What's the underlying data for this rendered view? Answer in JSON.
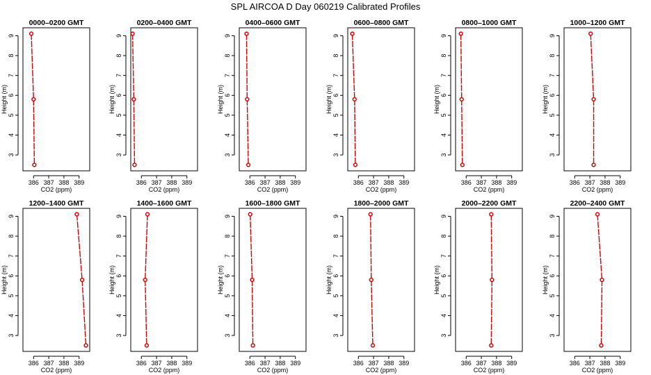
{
  "title": "SPL AIRCOA D  Day 060219  Calibrated Profiles",
  "colors": {
    "series": "#d40000"
  },
  "chart_data": [
    {
      "type": "line",
      "title": "0000–0200 GMT",
      "xlabel": "CO2 (ppm)",
      "ylabel": "Height (m)",
      "xlim": [
        385.3,
        389.7
      ],
      "ylim": [
        2.2,
        9.4
      ],
      "xticks": [
        386,
        387,
        388,
        389
      ],
      "yticks": [
        3,
        4,
        5,
        6,
        7,
        8,
        9
      ],
      "grid": false,
      "x": [
        385.85,
        386.0,
        386.05
      ],
      "y": [
        9.1,
        5.8,
        2.5
      ]
    },
    {
      "type": "line",
      "title": "0200–0400 GMT",
      "xlabel": "CO2 (ppm)",
      "ylabel": "Height (m)",
      "xlim": [
        385.3,
        389.7
      ],
      "ylim": [
        2.2,
        9.4
      ],
      "xticks": [
        386,
        387,
        388,
        389
      ],
      "yticks": [
        3,
        4,
        5,
        6,
        7,
        8,
        9
      ],
      "grid": false,
      "x": [
        385.42,
        385.5,
        385.55
      ],
      "y": [
        9.1,
        5.8,
        2.5
      ]
    },
    {
      "type": "line",
      "title": "0400–0600 GMT",
      "xlabel": "CO2 (ppm)",
      "ylabel": "Height (m)",
      "xlim": [
        385.3,
        389.7
      ],
      "ylim": [
        2.2,
        9.4
      ],
      "xticks": [
        386,
        387,
        388,
        389
      ],
      "yticks": [
        3,
        4,
        5,
        6,
        7,
        8,
        9
      ],
      "grid": false,
      "x": [
        385.78,
        385.82,
        385.9
      ],
      "y": [
        9.1,
        5.8,
        2.5
      ]
    },
    {
      "type": "line",
      "title": "0600–0800 GMT",
      "xlabel": "CO2 (ppm)",
      "ylabel": "Height (m)",
      "xlim": [
        385.3,
        389.7
      ],
      "ylim": [
        2.2,
        9.4
      ],
      "xticks": [
        386,
        387,
        388,
        389
      ],
      "yticks": [
        3,
        4,
        5,
        6,
        7,
        8,
        9
      ],
      "grid": false,
      "x": [
        385.6,
        385.75,
        385.8
      ],
      "y": [
        9.1,
        5.8,
        2.5
      ]
    },
    {
      "type": "line",
      "title": "0800–1000 GMT",
      "xlabel": "CO2 (ppm)",
      "ylabel": "Height (m)",
      "xlim": [
        385.3,
        389.7
      ],
      "ylim": [
        2.2,
        9.4
      ],
      "xticks": [
        386,
        387,
        388,
        389
      ],
      "yticks": [
        3,
        4,
        5,
        6,
        7,
        8,
        9
      ],
      "grid": false,
      "x": [
        385.65,
        385.7,
        385.75
      ],
      "y": [
        9.1,
        5.8,
        2.5
      ]
    },
    {
      "type": "line",
      "title": "1000–1200 GMT",
      "xlabel": "CO2 (ppm)",
      "ylabel": "Height (m)",
      "xlim": [
        385.3,
        389.7
      ],
      "ylim": [
        2.2,
        9.4
      ],
      "xticks": [
        386,
        387,
        388,
        389
      ],
      "yticks": [
        3,
        4,
        5,
        6,
        7,
        8,
        9
      ],
      "grid": false,
      "x": [
        387.05,
        387.25,
        387.25
      ],
      "y": [
        9.1,
        5.8,
        2.5
      ]
    },
    {
      "type": "line",
      "title": "1200–1400 GMT",
      "xlabel": "CO2 (ppm)",
      "ylabel": "Height (m)",
      "xlim": [
        385.3,
        389.7
      ],
      "ylim": [
        2.2,
        9.4
      ],
      "xticks": [
        386,
        387,
        388,
        389
      ],
      "yticks": [
        3,
        4,
        5,
        6,
        7,
        8,
        9
      ],
      "grid": false,
      "x": [
        388.85,
        389.2,
        389.45
      ],
      "y": [
        9.1,
        5.8,
        2.5
      ]
    },
    {
      "type": "line",
      "title": "1400–1600 GMT",
      "xlabel": "CO2 (ppm)",
      "ylabel": "Height (m)",
      "xlim": [
        385.3,
        389.7
      ],
      "ylim": [
        2.2,
        9.4
      ],
      "xticks": [
        386,
        387,
        388,
        389
      ],
      "yticks": [
        3,
        4,
        5,
        6,
        7,
        8,
        9
      ],
      "grid": false,
      "x": [
        386.4,
        386.25,
        386.35
      ],
      "y": [
        9.1,
        5.8,
        2.5
      ]
    },
    {
      "type": "line",
      "title": "1600–1800 GMT",
      "xlabel": "CO2 (ppm)",
      "ylabel": "Height (m)",
      "xlim": [
        385.3,
        389.7
      ],
      "ylim": [
        2.2,
        9.4
      ],
      "xticks": [
        386,
        387,
        388,
        389
      ],
      "yticks": [
        3,
        4,
        5,
        6,
        7,
        8,
        9
      ],
      "grid": false,
      "x": [
        386.02,
        386.15,
        386.2
      ],
      "y": [
        9.1,
        5.8,
        2.5
      ]
    },
    {
      "type": "line",
      "title": "1800–2000 GMT",
      "xlabel": "CO2 (ppm)",
      "ylabel": "Height (m)",
      "xlim": [
        385.3,
        389.7
      ],
      "ylim": [
        2.2,
        9.4
      ],
      "xticks": [
        386,
        387,
        388,
        389
      ],
      "yticks": [
        3,
        4,
        5,
        6,
        7,
        8,
        9
      ],
      "grid": false,
      "x": [
        386.8,
        386.85,
        386.95
      ],
      "y": [
        9.1,
        5.8,
        2.5
      ]
    },
    {
      "type": "line",
      "title": "2000–2200 GMT",
      "xlabel": "CO2 (ppm)",
      "ylabel": "Height (m)",
      "xlim": [
        385.3,
        389.7
      ],
      "ylim": [
        2.2,
        9.4
      ],
      "xticks": [
        386,
        387,
        388,
        389
      ],
      "yticks": [
        3,
        4,
        5,
        6,
        7,
        8,
        9
      ],
      "grid": false,
      "x": [
        387.65,
        387.7,
        387.65
      ],
      "y": [
        9.1,
        5.8,
        2.5
      ]
    },
    {
      "type": "line",
      "title": "2200–2400 GMT",
      "xlabel": "CO2 (ppm)",
      "ylabel": "Height (m)",
      "xlim": [
        385.3,
        389.7
      ],
      "ylim": [
        2.2,
        9.4
      ],
      "xticks": [
        386,
        387,
        388,
        389
      ],
      "yticks": [
        3,
        4,
        5,
        6,
        7,
        8,
        9
      ],
      "grid": false,
      "x": [
        387.5,
        387.8,
        387.75
      ],
      "y": [
        9.1,
        5.8,
        2.5
      ]
    }
  ]
}
